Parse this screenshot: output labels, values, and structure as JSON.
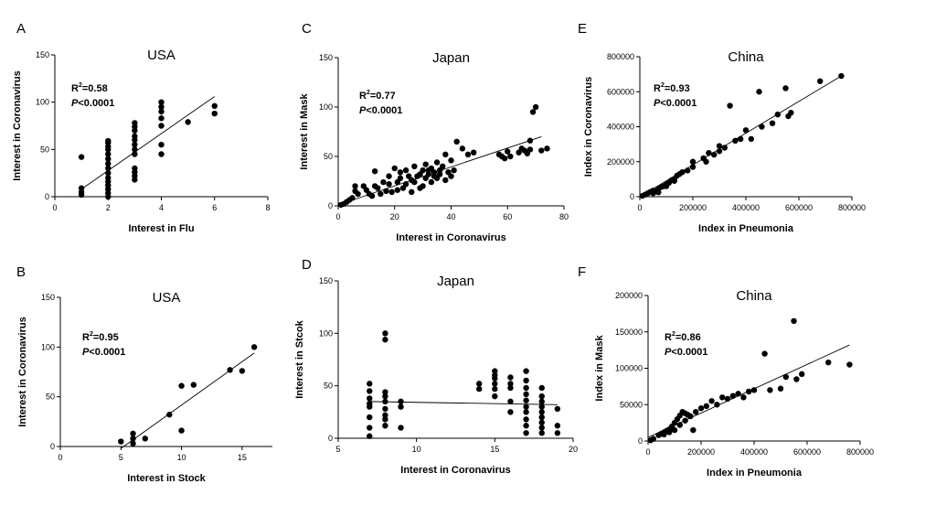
{
  "chart_data": [
    {
      "panel": "A",
      "type": "scatter",
      "title": "USA",
      "xlabel": "Interest in Flu",
      "ylabel": "Interest in Coronavirus",
      "xlim": [
        0,
        8
      ],
      "ylim": [
        0,
        150
      ],
      "xticks": [
        "0",
        "2",
        "4",
        "6",
        "8"
      ],
      "yticks": [
        "0",
        "50",
        "100",
        "150"
      ],
      "r2_label": "R",
      "r2_value": "=0.58",
      "p_label": "P",
      "p_value": "<0.0001",
      "trend": [
        [
          1,
          8
        ],
        [
          6,
          106
        ]
      ],
      "points": [
        [
          1,
          2
        ],
        [
          1,
          5
        ],
        [
          1,
          9
        ],
        [
          1,
          42
        ],
        [
          2,
          0
        ],
        [
          2,
          4
        ],
        [
          2,
          8
        ],
        [
          2,
          12
        ],
        [
          2,
          16
        ],
        [
          2,
          20
        ],
        [
          2,
          25
        ],
        [
          2,
          30
        ],
        [
          2,
          35
        ],
        [
          2,
          40
        ],
        [
          2,
          45
        ],
        [
          2,
          50
        ],
        [
          2,
          53
        ],
        [
          2,
          57
        ],
        [
          2,
          59
        ],
        [
          3,
          18
        ],
        [
          3,
          22
        ],
        [
          3,
          26
        ],
        [
          3,
          30
        ],
        [
          3,
          45
        ],
        [
          3,
          50
        ],
        [
          3,
          55
        ],
        [
          3,
          60
        ],
        [
          3,
          64
        ],
        [
          3,
          70
        ],
        [
          3,
          74
        ],
        [
          3,
          78
        ],
        [
          4,
          45
        ],
        [
          4,
          55
        ],
        [
          4,
          75
        ],
        [
          4,
          83
        ],
        [
          4,
          90
        ],
        [
          4,
          95
        ],
        [
          4,
          100
        ],
        [
          5,
          79
        ],
        [
          6,
          88
        ],
        [
          6,
          96
        ]
      ]
    },
    {
      "panel": "B",
      "type": "scatter",
      "title": "USA",
      "xlabel": "Interest in Stock",
      "ylabel": "Interest in Coronavirus",
      "xlim": [
        0,
        17.5
      ],
      "ylim": [
        0,
        150
      ],
      "xticks": [
        "0",
        "5",
        "10",
        "15"
      ],
      "yticks": [
        "0",
        "50",
        "100",
        "150"
      ],
      "r2_label": "R",
      "r2_value": "=0.95",
      "p_label": "P",
      "p_value": "<0.0001",
      "trend": [
        [
          5,
          -2
        ],
        [
          16,
          94
        ]
      ],
      "points": [
        [
          5,
          5
        ],
        [
          6,
          3
        ],
        [
          6,
          8
        ],
        [
          6,
          13
        ],
        [
          7,
          8
        ],
        [
          9,
          32
        ],
        [
          10,
          16
        ],
        [
          10,
          61
        ],
        [
          11,
          62
        ],
        [
          14,
          77
        ],
        [
          15,
          76
        ],
        [
          16,
          100
        ]
      ]
    },
    {
      "panel": "C",
      "type": "scatter",
      "title": "Japan",
      "xlabel": "Interest in Coronavirus",
      "ylabel": "Interest in Mask",
      "xlim": [
        0,
        80
      ],
      "ylim": [
        0,
        150
      ],
      "xticks": [
        "0",
        "20",
        "40",
        "60",
        "80"
      ],
      "yticks": [
        "0",
        "50",
        "100",
        "150"
      ],
      "r2_label": "R",
      "r2_value": "=0.77",
      "p_label": "P",
      "p_value": "<0.0001",
      "trend": [
        [
          1,
          2
        ],
        [
          72,
          70
        ]
      ],
      "points": [
        [
          1,
          1
        ],
        [
          2,
          2
        ],
        [
          3,
          4
        ],
        [
          4,
          6
        ],
        [
          5,
          8
        ],
        [
          6,
          15
        ],
        [
          6,
          20
        ],
        [
          7,
          12
        ],
        [
          9,
          20
        ],
        [
          10,
          16
        ],
        [
          11,
          12
        ],
        [
          12,
          10
        ],
        [
          13,
          20
        ],
        [
          13,
          35
        ],
        [
          14,
          18
        ],
        [
          15,
          12
        ],
        [
          16,
          24
        ],
        [
          17,
          15
        ],
        [
          18,
          22
        ],
        [
          18,
          30
        ],
        [
          19,
          14
        ],
        [
          20,
          38
        ],
        [
          21,
          16
        ],
        [
          21,
          24
        ],
        [
          22,
          28
        ],
        [
          22,
          34
        ],
        [
          23,
          18
        ],
        [
          24,
          22
        ],
        [
          24,
          36
        ],
        [
          25,
          30
        ],
        [
          26,
          14
        ],
        [
          26,
          26
        ],
        [
          27,
          24
        ],
        [
          27,
          40
        ],
        [
          28,
          30
        ],
        [
          29,
          18
        ],
        [
          29,
          32
        ],
        [
          30,
          36
        ],
        [
          30,
          20
        ],
        [
          31,
          28
        ],
        [
          31,
          42
        ],
        [
          32,
          32
        ],
        [
          32,
          36
        ],
        [
          33,
          24
        ],
        [
          33,
          38
        ],
        [
          34,
          30
        ],
        [
          34,
          34
        ],
        [
          35,
          28
        ],
        [
          35,
          44
        ],
        [
          36,
          36
        ],
        [
          36,
          32
        ],
        [
          37,
          40
        ],
        [
          38,
          26
        ],
        [
          38,
          52
        ],
        [
          39,
          34
        ],
        [
          40,
          46
        ],
        [
          40,
          30
        ],
        [
          41,
          36
        ],
        [
          42,
          65
        ],
        [
          44,
          58
        ],
        [
          46,
          52
        ],
        [
          48,
          54
        ],
        [
          57,
          52
        ],
        [
          58,
          50
        ],
        [
          59,
          48
        ],
        [
          60,
          55
        ],
        [
          61,
          50
        ],
        [
          64,
          54
        ],
        [
          65,
          58
        ],
        [
          66,
          56
        ],
        [
          67,
          53
        ],
        [
          68,
          66
        ],
        [
          68,
          57
        ],
        [
          69,
          95
        ],
        [
          70,
          100
        ],
        [
          72,
          56
        ],
        [
          74,
          58
        ]
      ]
    },
    {
      "panel": "D",
      "type": "scatter",
      "title": "Japan",
      "xlabel": "Interest in Coronavirus",
      "ylabel": "Interest in Stcok",
      "xlim": [
        5,
        20
      ],
      "ylim": [
        0,
        150
      ],
      "xticks": [
        "5",
        "10",
        "15",
        "20"
      ],
      "yticks": [
        "0",
        "50",
        "100",
        "150"
      ],
      "r2_label": "",
      "r2_value": "",
      "p_label": "",
      "p_value": "",
      "trend": [
        [
          7,
          35
        ],
        [
          19,
          32
        ]
      ],
      "points": [
        [
          7,
          2
        ],
        [
          7,
          10
        ],
        [
          7,
          20
        ],
        [
          7,
          30
        ],
        [
          7,
          33
        ],
        [
          7,
          38
        ],
        [
          7,
          45
        ],
        [
          7,
          52
        ],
        [
          8,
          12
        ],
        [
          8,
          18
        ],
        [
          8,
          22
        ],
        [
          8,
          28
        ],
        [
          8,
          35
        ],
        [
          8,
          40
        ],
        [
          8,
          44
        ],
        [
          8,
          94
        ],
        [
          8,
          100
        ],
        [
          9,
          10
        ],
        [
          9,
          30
        ],
        [
          9,
          35
        ],
        [
          14,
          47
        ],
        [
          14,
          52
        ],
        [
          15,
          40
        ],
        [
          15,
          47
        ],
        [
          15,
          52
        ],
        [
          15,
          57
        ],
        [
          15,
          60
        ],
        [
          15,
          64
        ],
        [
          16,
          25
        ],
        [
          16,
          35
        ],
        [
          16,
          48
        ],
        [
          16,
          52
        ],
        [
          16,
          58
        ],
        [
          17,
          5
        ],
        [
          17,
          12
        ],
        [
          17,
          18
        ],
        [
          17,
          25
        ],
        [
          17,
          30
        ],
        [
          17,
          36
        ],
        [
          17,
          42
        ],
        [
          17,
          48
        ],
        [
          17,
          55
        ],
        [
          17,
          64
        ],
        [
          18,
          5
        ],
        [
          18,
          10
        ],
        [
          18,
          15
        ],
        [
          18,
          20
        ],
        [
          18,
          25
        ],
        [
          18,
          30
        ],
        [
          18,
          35
        ],
        [
          18,
          40
        ],
        [
          18,
          48
        ],
        [
          19,
          5
        ],
        [
          19,
          12
        ],
        [
          19,
          28
        ]
      ]
    },
    {
      "panel": "E",
      "type": "scatter",
      "title": "China",
      "xlabel": "Index in Pneumonia",
      "ylabel": "Index in Coronavirus",
      "xlim": [
        0,
        800000
      ],
      "ylim": [
        0,
        800000
      ],
      "xticks": [
        "0",
        "200000",
        "400000",
        "600000",
        "800000"
      ],
      "yticks": [
        "0",
        "200000",
        "400000",
        "600000",
        "800000"
      ],
      "r2_label": "R",
      "r2_value": "=0.93",
      "p_label": "P",
      "p_value": "<0.0001",
      "trend": [
        [
          0,
          0
        ],
        [
          760000,
          690000
        ]
      ],
      "points": [
        [
          10000,
          5000
        ],
        [
          20000,
          12000
        ],
        [
          30000,
          20000
        ],
        [
          40000,
          28000
        ],
        [
          50000,
          35000
        ],
        [
          60000,
          30000
        ],
        [
          70000,
          45000
        ],
        [
          80000,
          55000
        ],
        [
          90000,
          60000
        ],
        [
          100000,
          70000
        ],
        [
          110000,
          80000
        ],
        [
          120000,
          95000
        ],
        [
          130000,
          100000
        ],
        [
          140000,
          120000
        ],
        [
          150000,
          130000
        ],
        [
          160000,
          140000
        ],
        [
          180000,
          150000
        ],
        [
          200000,
          170000
        ],
        [
          240000,
          220000
        ],
        [
          260000,
          250000
        ],
        [
          280000,
          240000
        ],
        [
          300000,
          260000
        ],
        [
          320000,
          280000
        ],
        [
          340000,
          520000
        ],
        [
          360000,
          320000
        ],
        [
          380000,
          330000
        ],
        [
          420000,
          330000
        ],
        [
          450000,
          600000
        ],
        [
          460000,
          400000
        ],
        [
          500000,
          420000
        ],
        [
          520000,
          470000
        ],
        [
          550000,
          620000
        ],
        [
          560000,
          460000
        ],
        [
          570000,
          480000
        ],
        [
          680000,
          660000
        ],
        [
          760000,
          690000
        ],
        [
          50000,
          20000
        ],
        [
          70000,
          25000
        ],
        [
          100000,
          60000
        ],
        [
          130000,
          90000
        ],
        [
          200000,
          200000
        ],
        [
          250000,
          200000
        ],
        [
          300000,
          290000
        ],
        [
          400000,
          380000
        ]
      ]
    },
    {
      "panel": "F",
      "type": "scatter",
      "title": "China",
      "xlabel": "Index in Pneumonia",
      "ylabel": "Index in Mask",
      "xlim": [
        0,
        800000
      ],
      "ylim": [
        0,
        200000
      ],
      "xticks": [
        "0",
        "200000",
        "400000",
        "600000",
        "800000"
      ],
      "yticks": [
        "0",
        "50000",
        "100000",
        "150000",
        "200000"
      ],
      "r2_label": "R",
      "r2_value": "=0.86",
      "p_label": "P",
      "p_value": "<0.0001",
      "trend": [
        [
          0,
          5000
        ],
        [
          760000,
          132000
        ]
      ],
      "points": [
        [
          10000,
          1000
        ],
        [
          20000,
          3000
        ],
        [
          40000,
          8000
        ],
        [
          50000,
          10000
        ],
        [
          60000,
          12000
        ],
        [
          70000,
          14000
        ],
        [
          80000,
          16000
        ],
        [
          90000,
          20000
        ],
        [
          100000,
          25000
        ],
        [
          110000,
          30000
        ],
        [
          120000,
          35000
        ],
        [
          130000,
          40000
        ],
        [
          140000,
          38000
        ],
        [
          150000,
          36000
        ],
        [
          160000,
          34000
        ],
        [
          170000,
          15000
        ],
        [
          180000,
          40000
        ],
        [
          200000,
          45000
        ],
        [
          220000,
          48000
        ],
        [
          240000,
          55000
        ],
        [
          260000,
          50000
        ],
        [
          280000,
          60000
        ],
        [
          300000,
          58000
        ],
        [
          320000,
          62000
        ],
        [
          340000,
          65000
        ],
        [
          360000,
          60000
        ],
        [
          380000,
          68000
        ],
        [
          400000,
          70000
        ],
        [
          440000,
          120000
        ],
        [
          460000,
          70000
        ],
        [
          500000,
          72000
        ],
        [
          520000,
          88000
        ],
        [
          550000,
          165000
        ],
        [
          560000,
          85000
        ],
        [
          580000,
          92000
        ],
        [
          680000,
          108000
        ],
        [
          760000,
          105000
        ],
        [
          60000,
          9000
        ],
        [
          80000,
          12000
        ],
        [
          100000,
          15000
        ],
        [
          120000,
          22000
        ],
        [
          140000,
          28000
        ]
      ]
    }
  ]
}
